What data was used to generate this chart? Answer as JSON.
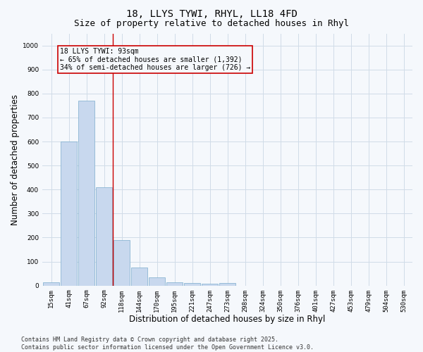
{
  "title_line1": "18, LLYS TYWI, RHYL, LL18 4FD",
  "title_line2": "Size of property relative to detached houses in Rhyl",
  "xlabel": "Distribution of detached houses by size in Rhyl",
  "ylabel": "Number of detached properties",
  "categories": [
    "15sqm",
    "41sqm",
    "67sqm",
    "92sqm",
    "118sqm",
    "144sqm",
    "170sqm",
    "195sqm",
    "221sqm",
    "247sqm",
    "273sqm",
    "298sqm",
    "324sqm",
    "350sqm",
    "376sqm",
    "401sqm",
    "427sqm",
    "453sqm",
    "479sqm",
    "504sqm",
    "530sqm"
  ],
  "values": [
    15,
    600,
    770,
    410,
    190,
    75,
    35,
    15,
    10,
    8,
    10,
    0,
    0,
    0,
    0,
    0,
    0,
    0,
    0,
    0,
    0
  ],
  "bar_color": "#c8d8ee",
  "bar_edge_color": "#7aaccc",
  "grid_color": "#d0dce8",
  "annotation_text": "18 LLYS TYWI: 93sqm\n← 65% of detached houses are smaller (1,392)\n34% of semi-detached houses are larger (726) →",
  "annotation_box_color": "#cc0000",
  "vline_x_index": 3.5,
  "vline_color": "#cc0000",
  "ylim": [
    0,
    1050
  ],
  "yticks": [
    0,
    100,
    200,
    300,
    400,
    500,
    600,
    700,
    800,
    900,
    1000
  ],
  "footer_line1": "Contains HM Land Registry data © Crown copyright and database right 2025.",
  "footer_line2": "Contains public sector information licensed under the Open Government Licence v3.0.",
  "background_color": "#f5f8fc",
  "plot_bg_color": "#f5f8fc",
  "title_fontsize": 10,
  "subtitle_fontsize": 9,
  "tick_fontsize": 6.5,
  "label_fontsize": 8.5,
  "annotation_fontsize": 7,
  "footer_fontsize": 6
}
